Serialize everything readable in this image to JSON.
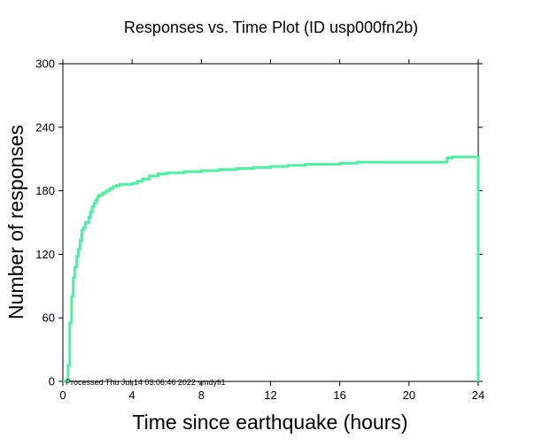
{
  "chart_data": {
    "type": "line",
    "title": "Responses vs. Time Plot (ID usp000fn2b)",
    "xlabel": "Time since earthquake (hours)",
    "ylabel": "Number of responses",
    "xlim": [
      0,
      24
    ],
    "ylim": [
      0,
      300
    ],
    "xticks": [
      0,
      4,
      8,
      12,
      16,
      20,
      24
    ],
    "yticks": [
      0,
      60,
      120,
      180,
      240,
      300
    ],
    "grid": false,
    "line_color": "#4cf29f",
    "annotation": "Processed Thu Jul 14 03:06:46 2022 vmdyfi1",
    "series": [
      {
        "step": true,
        "x": [
          0.0,
          0.3,
          0.4,
          0.5,
          0.6,
          0.7,
          0.8,
          0.9,
          1.0,
          1.1,
          1.2,
          1.3,
          1.5,
          1.6,
          1.7,
          1.8,
          1.9,
          2.0,
          2.1,
          2.3,
          2.5,
          2.7,
          2.9,
          3.1,
          3.3,
          3.6,
          4.0,
          4.3,
          4.6,
          5.0,
          5.5,
          6.0,
          7.0,
          8.0,
          9.0,
          10.0,
          11.0,
          12.0,
          13.0,
          14.0,
          15.0,
          16.0,
          17.0,
          18.0,
          19.0,
          20.0,
          21.0,
          22.0,
          22.2,
          22.5,
          23.0,
          23.5,
          24.0,
          24.0
        ],
        "y": [
          0,
          15,
          55,
          80,
          98,
          108,
          118,
          125,
          133,
          143,
          145,
          150,
          155,
          160,
          165,
          168,
          171,
          174,
          176,
          178,
          180,
          182,
          184,
          185,
          186,
          186,
          187,
          189,
          191,
          194,
          196,
          197,
          198,
          199,
          200,
          201,
          202,
          203,
          204,
          205,
          205,
          206,
          207,
          207,
          207,
          207,
          207,
          207,
          211,
          212,
          212,
          212,
          212,
          0
        ]
      }
    ]
  }
}
